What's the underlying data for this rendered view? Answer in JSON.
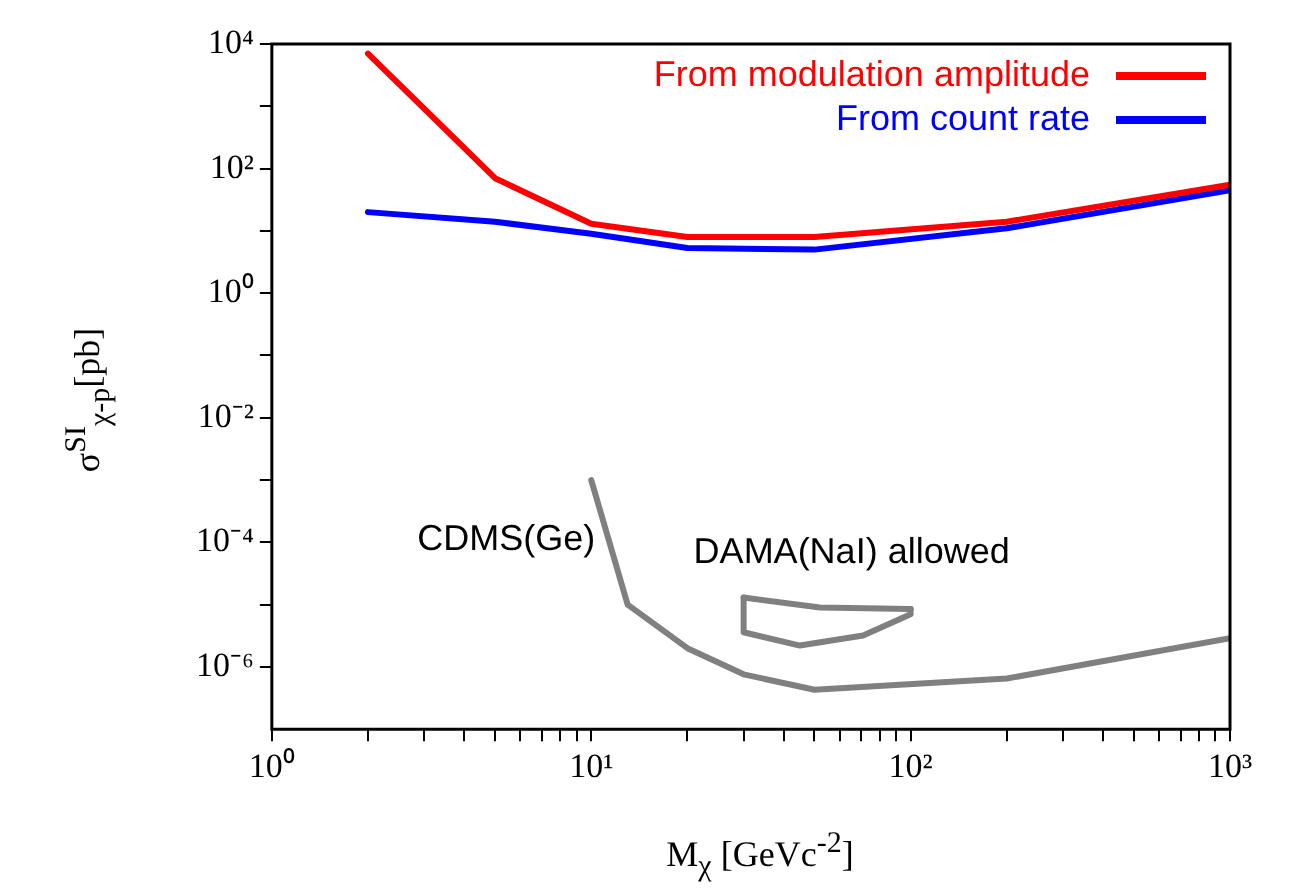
{
  "chart_data": {
    "type": "line",
    "xlabel": "M$_{χ}$ [GeVc$^{-2}$]",
    "ylabel": "σ$^{SI}$$_{χ-p}$[pb]",
    "log": "xy",
    "grid": false,
    "legend": "top right",
    "marker": "none",
    "line_style": "solid",
    "xlim": [
      1,
      1000
    ],
    "ylim": [
      1e-07,
      10000
    ],
    "xticks": [
      {
        "value": 1,
        "label": "10⁰"
      },
      {
        "value": 2,
        "label": null
      },
      {
        "value": 3,
        "label": null
      },
      {
        "value": 4,
        "label": null
      },
      {
        "value": 5,
        "label": null
      },
      {
        "value": 6,
        "label": null
      },
      {
        "value": 7,
        "label": null
      },
      {
        "value": 8,
        "label": null
      },
      {
        "value": 9,
        "label": null
      },
      {
        "value": 10,
        "label": "10¹"
      },
      {
        "value": 20,
        "label": null
      },
      {
        "value": 30,
        "label": null
      },
      {
        "value": 40,
        "label": null
      },
      {
        "value": 50,
        "label": null
      },
      {
        "value": 60,
        "label": null
      },
      {
        "value": 70,
        "label": null
      },
      {
        "value": 80,
        "label": null
      },
      {
        "value": 90,
        "label": null
      },
      {
        "value": 100,
        "label": "10²"
      },
      {
        "value": 200,
        "label": null
      },
      {
        "value": 300,
        "label": null
      },
      {
        "value": 400,
        "label": null
      },
      {
        "value": 500,
        "label": null
      },
      {
        "value": 600,
        "label": null
      },
      {
        "value": 700,
        "label": null
      },
      {
        "value": 800,
        "label": null
      },
      {
        "value": 900,
        "label": null
      },
      {
        "value": 1000,
        "label": "10³"
      }
    ],
    "yticks": [
      {
        "value": 1e-06,
        "label": "10⁻⁶"
      },
      {
        "value": 1e-05,
        "label": null
      },
      {
        "value": 0.0001,
        "label": "10⁻⁴"
      },
      {
        "value": 0.001,
        "label": null
      },
      {
        "value": 0.01,
        "label": "10⁻²"
      },
      {
        "value": 0.1,
        "label": null
      },
      {
        "value": 1,
        "label": "10⁰"
      },
      {
        "value": 10,
        "label": null
      },
      {
        "value": 100,
        "label": "10²"
      },
      {
        "value": 1000,
        "label": null
      },
      {
        "value": 10000,
        "label": "10⁴"
      }
    ],
    "series": [
      {
        "name": "From modulation amplitude",
        "color": "#ff0000",
        "x": [
          2,
          5,
          10,
          20,
          50,
          200,
          1000
        ],
        "values": [
          7000,
          70,
          13,
          8,
          8,
          14,
          55
        ]
      },
      {
        "name": "From count rate",
        "color": "#0000ff",
        "x": [
          2,
          5,
          10,
          20,
          50,
          200,
          1000
        ],
        "values": [
          20,
          14,
          9,
          5.3,
          5,
          11,
          45
        ]
      },
      {
        "color": "#808080",
        "x": [
          10,
          13,
          20,
          30,
          50,
          200,
          1000
        ],
        "values": [
          0.001,
          1e-05,
          2e-06,
          7.6e-07,
          4.3e-07,
          6.5e-07,
          2.9e-06
        ]
      },
      {
        "color": "#808080",
        "x": [
          30,
          30,
          45,
          71,
          100,
          100
        ],
        "values": [
          1.3e-05,
          3.6e-06,
          2.2e-06,
          3.2e-06,
          7e-06,
          8.5e-06
        ]
      },
      {
        "color": "#808080",
        "x": [
          30,
          52,
          100
        ],
        "values": [
          1.3e-05,
          9e-06,
          8.5e-06
        ]
      }
    ],
    "annotations": [
      "CDMS(Ge)",
      "DAMA(NaI) allowed"
    ]
  }
}
